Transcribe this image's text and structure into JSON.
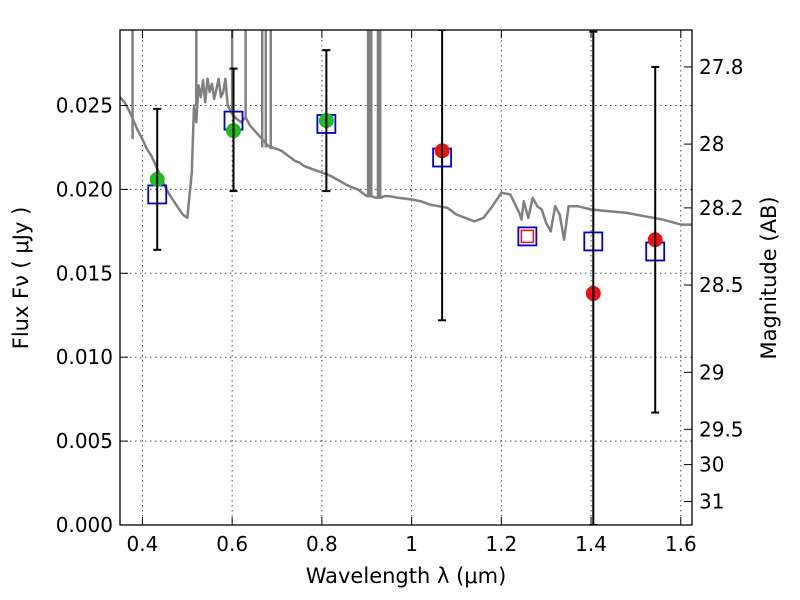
{
  "chart_data": {
    "type": "scatter",
    "xlabel": "Wavelength  λ (μm)",
    "ylabel": "Flux  Fν  ( μJy )",
    "ylabel_right": "Magnitude (AB)",
    "xlim": [
      0.35,
      1.625
    ],
    "ylim": [
      0.0,
      0.0295
    ],
    "grid": true,
    "x_ticks": [
      0.4,
      0.6,
      0.8,
      1.0,
      1.2,
      1.4,
      1.6
    ],
    "x_tick_labels": [
      "0.4",
      "0.6",
      "0.8",
      "1",
      "1.2",
      "1.4",
      "1.6"
    ],
    "y_ticks": [
      0.0,
      0.005,
      0.01,
      0.015,
      0.02,
      0.025
    ],
    "y_tick_labels": [
      "0.000",
      "0.005",
      "0.010",
      "0.015",
      "0.020",
      "0.025"
    ],
    "right_ticks": [
      {
        "label": "27.8",
        "flux": 0.0273
      },
      {
        "label": "28",
        "flux": 0.0227
      },
      {
        "label": "28.2",
        "flux": 0.0189
      },
      {
        "label": "28.5",
        "flux": 0.0143
      },
      {
        "label": "29",
        "flux": 0.0091
      },
      {
        "label": "29.5",
        "flux": 0.0057
      },
      {
        "label": "30",
        "flux": 0.0036
      },
      {
        "label": "31",
        "flux": 0.0014
      }
    ],
    "series": [
      {
        "name": "model spectrum",
        "style": "line",
        "color": "#808080",
        "x": [
          0.35,
          0.36,
          0.37,
          0.38,
          0.39,
          0.4,
          0.41,
          0.42,
          0.43,
          0.44,
          0.45,
          0.46,
          0.47,
          0.48,
          0.49,
          0.5,
          0.51,
          0.515,
          0.52,
          0.525,
          0.53,
          0.535,
          0.54,
          0.545,
          0.55,
          0.555,
          0.56,
          0.565,
          0.57,
          0.575,
          0.58,
          0.585,
          0.59,
          0.6,
          0.61,
          0.62,
          0.63,
          0.64,
          0.65,
          0.66,
          0.67,
          0.68,
          0.69,
          0.7,
          0.71,
          0.72,
          0.73,
          0.74,
          0.75,
          0.76,
          0.78,
          0.8,
          0.82,
          0.84,
          0.86,
          0.88,
          0.89,
          0.9,
          0.905,
          0.91,
          0.92,
          0.925,
          0.93,
          0.94,
          0.95,
          0.97,
          1.0,
          1.02,
          1.04,
          1.06,
          1.08,
          1.1,
          1.12,
          1.14,
          1.16,
          1.18,
          1.2,
          1.22,
          1.24,
          1.245,
          1.25,
          1.26,
          1.27,
          1.28,
          1.29,
          1.3,
          1.31,
          1.32,
          1.33,
          1.34,
          1.35,
          1.37,
          1.4,
          1.44,
          1.48,
          1.52,
          1.56,
          1.6,
          1.625
        ],
        "y": [
          0.0255,
          0.0252,
          0.0247,
          0.0241,
          0.0235,
          0.023,
          0.0224,
          0.022,
          0.0214,
          0.0208,
          0.0202,
          0.0197,
          0.0193,
          0.0189,
          0.0185,
          0.0183,
          0.021,
          0.025,
          0.024,
          0.0262,
          0.0255,
          0.0265,
          0.0252,
          0.0266,
          0.0258,
          0.0263,
          0.0254,
          0.026,
          0.0266,
          0.0255,
          0.0258,
          0.0266,
          0.025,
          0.0245,
          0.0242,
          0.024,
          0.0243,
          0.0238,
          0.0235,
          0.0232,
          0.0229,
          0.0226,
          0.0225,
          0.0224,
          0.0223,
          0.0221,
          0.0219,
          0.0217,
          0.0216,
          0.0214,
          0.0212,
          0.021,
          0.0208,
          0.0205,
          0.0202,
          0.02,
          0.0198,
          0.0196,
          0.0196,
          0.0196,
          0.0195,
          0.0195,
          0.0195,
          0.0196,
          0.0196,
          0.0195,
          0.0194,
          0.0193,
          0.0191,
          0.019,
          0.0189,
          0.0185,
          0.0183,
          0.0181,
          0.0183,
          0.019,
          0.0198,
          0.0197,
          0.0186,
          0.0182,
          0.0193,
          0.0183,
          0.0195,
          0.019,
          0.0188,
          0.018,
          0.0175,
          0.019,
          0.0185,
          0.017,
          0.019,
          0.019,
          0.0188,
          0.0187,
          0.0186,
          0.0184,
          0.0182,
          0.0179,
          0.0179
        ]
      },
      {
        "name": "model spectrum spikes",
        "style": "segments",
        "color": "#808080",
        "x": [
          0.378,
          0.52,
          0.6,
          0.63,
          0.667,
          0.675,
          0.686,
          0.903,
          0.906,
          0.91,
          0.925,
          0.93
        ],
        "y_low": [
          0.023,
          0.025,
          0.0245,
          0.0243,
          0.0225,
          0.0225,
          0.0224,
          0.0196,
          0.0196,
          0.0196,
          0.0195,
          0.0195
        ],
        "y_high": [
          0.0295,
          0.0295,
          0.0295,
          0.0295,
          0.0295,
          0.0295,
          0.0295,
          0.0295,
          0.0295,
          0.0295,
          0.0295,
          0.0295
        ]
      },
      {
        "name": "model photometry",
        "style": "open-square",
        "color": "#0000cc",
        "x": [
          0.433,
          0.603,
          0.81,
          1.068,
          1.258,
          1.405,
          1.543
        ],
        "y": [
          0.0197,
          0.0241,
          0.0239,
          0.0219,
          0.0172,
          0.0169,
          0.0163
        ]
      },
      {
        "name": "optical detections",
        "style": "filled-circle",
        "color": "#22bb22",
        "x": [
          0.433,
          0.603,
          0.81
        ],
        "y": [
          0.0206,
          0.0235,
          0.0241
        ]
      },
      {
        "name": "NIR detections",
        "style": "filled-circle",
        "color": "#ee1111",
        "x": [
          1.068,
          1.405,
          1.543
        ],
        "y": [
          0.0223,
          0.0138,
          0.017
        ]
      },
      {
        "name": "NIR small marker",
        "style": "small-open-square",
        "color": "#ee1111",
        "x": [
          1.258
        ],
        "y": [
          0.0172
        ]
      },
      {
        "name": "error bars",
        "style": "errorbar",
        "color": "#000000",
        "x": [
          0.433,
          0.603,
          0.81,
          1.068,
          1.405,
          1.543
        ],
        "y_low": [
          0.0164,
          0.0199,
          0.0199,
          0.0122,
          0.0,
          0.0067
        ],
        "y_high": [
          0.0248,
          0.0272,
          0.0283,
          0.0295,
          0.0294,
          0.0273
        ]
      }
    ]
  }
}
